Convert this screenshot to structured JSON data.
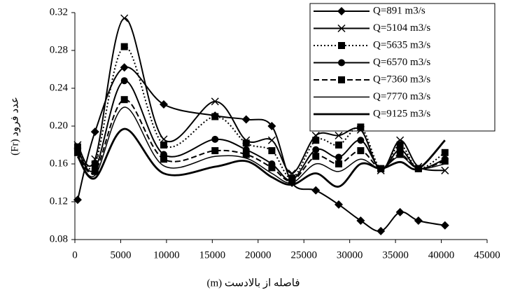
{
  "chart_data": {
    "type": "line",
    "x_label": "فاصله از بالادست (m)",
    "y_label": "عدد فرود (Fr)",
    "x": [
      300,
      2200,
      5400,
      9700,
      15300,
      18700,
      21500,
      23700,
      26300,
      28800,
      31200,
      33400,
      35500,
      37500,
      40400
    ],
    "series": [
      {
        "name": "Q=891 m3/s",
        "color": "#000000",
        "marker": "diamond",
        "dash": "solid",
        "width": 2,
        "values": [
          0.122,
          0.194,
          0.262,
          0.223,
          0.211,
          0.207,
          0.2,
          0.14,
          0.132,
          0.117,
          0.1,
          0.089,
          0.109,
          0.1,
          0.095
        ]
      },
      {
        "name": "Q=5104 m3/s",
        "color": "#000000",
        "marker": "x",
        "dash": "solid",
        "width": 2,
        "values": [
          0.18,
          0.165,
          0.314,
          0.186,
          0.226,
          0.185,
          0.185,
          0.15,
          0.19,
          0.19,
          0.196,
          0.153,
          0.185,
          0.157,
          0.153
        ]
      },
      {
        "name": "Q=5635 m3/s",
        "color": "#000000",
        "marker": "square",
        "dash": "dotted",
        "width": 2,
        "values": [
          0.178,
          0.16,
          0.284,
          0.18,
          0.21,
          0.182,
          0.174,
          0.145,
          0.185,
          0.18,
          0.199,
          0.155,
          0.18,
          0.155,
          0.172
        ]
      },
      {
        "name": "Q=6570 m3/s",
        "color": "#000000",
        "marker": "circle",
        "dash": "solid",
        "width": 2,
        "values": [
          0.175,
          0.155,
          0.248,
          0.17,
          0.186,
          0.175,
          0.16,
          0.143,
          0.175,
          0.167,
          0.185,
          0.155,
          0.175,
          0.155,
          0.165
        ]
      },
      {
        "name": "Q=7360 m3/s",
        "color": "#000000",
        "marker": "square",
        "dash": "dashed",
        "width": 2,
        "values": [
          0.172,
          0.152,
          0.228,
          0.165,
          0.174,
          0.17,
          0.156,
          0.142,
          0.168,
          0.16,
          0.174,
          0.155,
          0.17,
          0.155,
          0.163
        ]
      },
      {
        "name": "Q=7770 m3/s",
        "color": "#000000",
        "marker": "none",
        "dash": "solid",
        "width": 1.5,
        "values": [
          0.17,
          0.148,
          0.22,
          0.158,
          0.168,
          0.166,
          0.15,
          0.14,
          0.16,
          0.152,
          0.165,
          0.155,
          0.168,
          0.155,
          0.16
        ]
      },
      {
        "name": "Q=9125 m3/s",
        "color": "#000000",
        "marker": "none",
        "dash": "solid",
        "width": 2.8,
        "values": [
          0.168,
          0.145,
          0.197,
          0.15,
          0.157,
          0.163,
          0.146,
          0.138,
          0.15,
          0.136,
          0.16,
          0.155,
          0.162,
          0.155,
          0.185
        ]
      }
    ],
    "xlim": [
      0,
      45000
    ],
    "xticks": [
      0,
      5000,
      10000,
      15000,
      20000,
      25000,
      30000,
      35000,
      40000,
      45000
    ],
    "ylim": [
      0.08,
      0.32
    ],
    "yticks": [
      0.08,
      0.12,
      0.16,
      {
        "value": 0.2,
        "label": "0.20"
      },
      0.24,
      0.28,
      0.32
    ],
    "grid": false,
    "legend": "top-right",
    "smooth": true
  }
}
